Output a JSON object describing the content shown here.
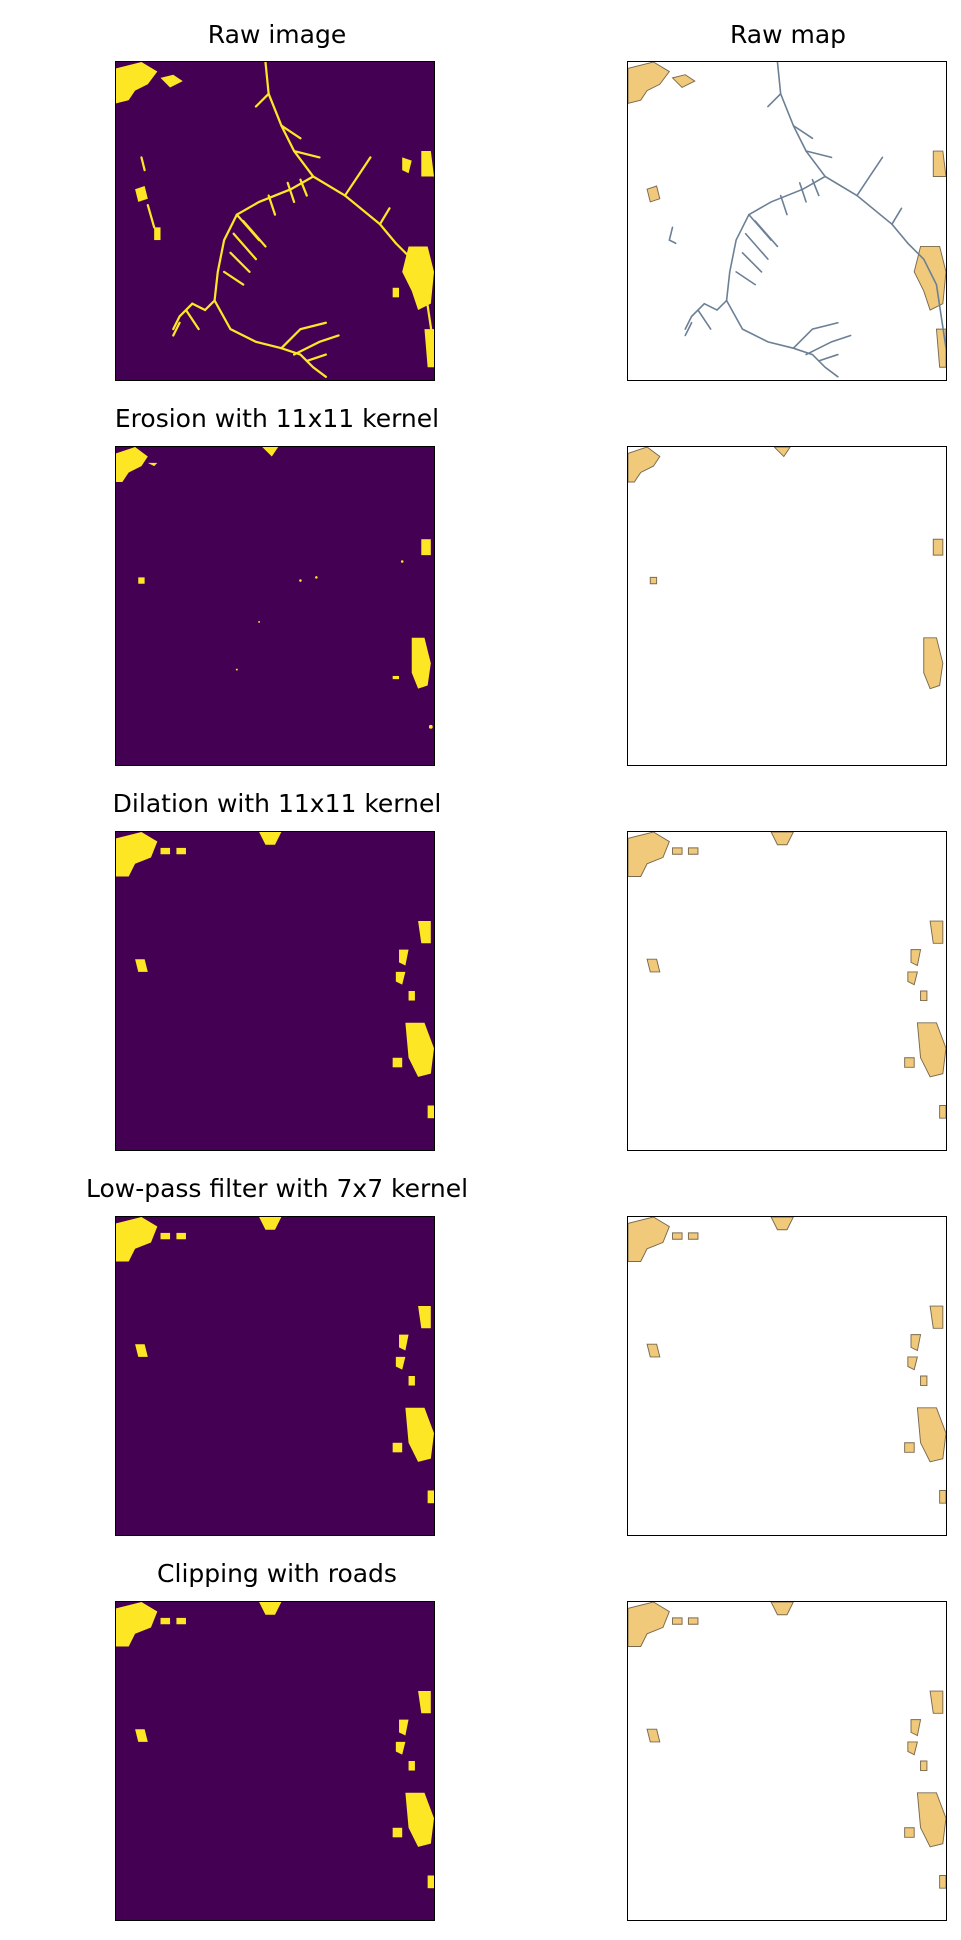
{
  "figure": {
    "rows": [
      {
        "left_title": "Raw image",
        "right_title": "Raw map"
      },
      {
        "left_title": "Erosion with 11x11 kernel",
        "right_title": ""
      },
      {
        "left_title": "Dilation with 11x11 kernel",
        "right_title": ""
      },
      {
        "left_title": "Low-pass filter with 7x7 kernel",
        "right_title": ""
      },
      {
        "left_title": "Clipping with roads",
        "right_title": ""
      }
    ]
  },
  "colors": {
    "mask_background": "#440154",
    "mask_foreground": "#fde725",
    "map_background": "#ffffff",
    "map_fill": "#f0c97a",
    "map_edge": "#7a6a50",
    "road_line": "#6b7f95",
    "frame": "#000000"
  }
}
